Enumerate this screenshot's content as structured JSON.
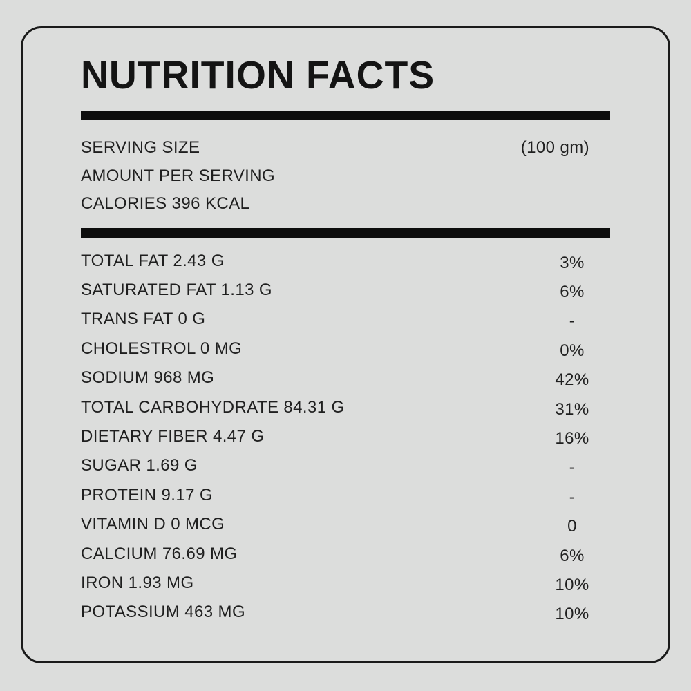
{
  "label": {
    "title": "NUTRITION FACTS",
    "serving": {
      "size_label": "SERVING SIZE",
      "size_value": "(100 gm)",
      "amount_per_serving": "AMOUNT PER SERVING",
      "calories": "CALORIES 396 KCAL"
    },
    "rows": [
      {
        "name": "TOTAL FAT 2.43 G",
        "dv": "3%"
      },
      {
        "name": "SATURATED FAT 1.13 G",
        "dv": "6%"
      },
      {
        "name": "TRANS FAT 0 G",
        "dv": "-"
      },
      {
        "name": "CHOLESTROL 0 MG",
        "dv": "0%"
      },
      {
        "name": "SODIUM 968 MG",
        "dv": "42%"
      },
      {
        "name": "TOTAL CARBOHYDRATE 84.31 G",
        "dv": "31%"
      },
      {
        "name": "DIETARY FIBER 4.47 G",
        "dv": "16%"
      },
      {
        "name": "SUGAR 1.69 G",
        "dv": "-"
      },
      {
        "name": "PROTEIN 9.17 G",
        "dv": "-"
      },
      {
        "name": "VITAMIN D 0 MCG",
        "dv": "0"
      },
      {
        "name": "CALCIUM 76.69 MG",
        "dv": "6%"
      },
      {
        "name": "IRON 1.93 MG",
        "dv": "10%"
      },
      {
        "name": "POTASSIUM 463 MG",
        "dv": "10%"
      }
    ],
    "colors": {
      "background": "#dcdddc",
      "text": "#1f1f1f",
      "bar": "#0d0d0d",
      "border": "#1a1a1a"
    }
  }
}
